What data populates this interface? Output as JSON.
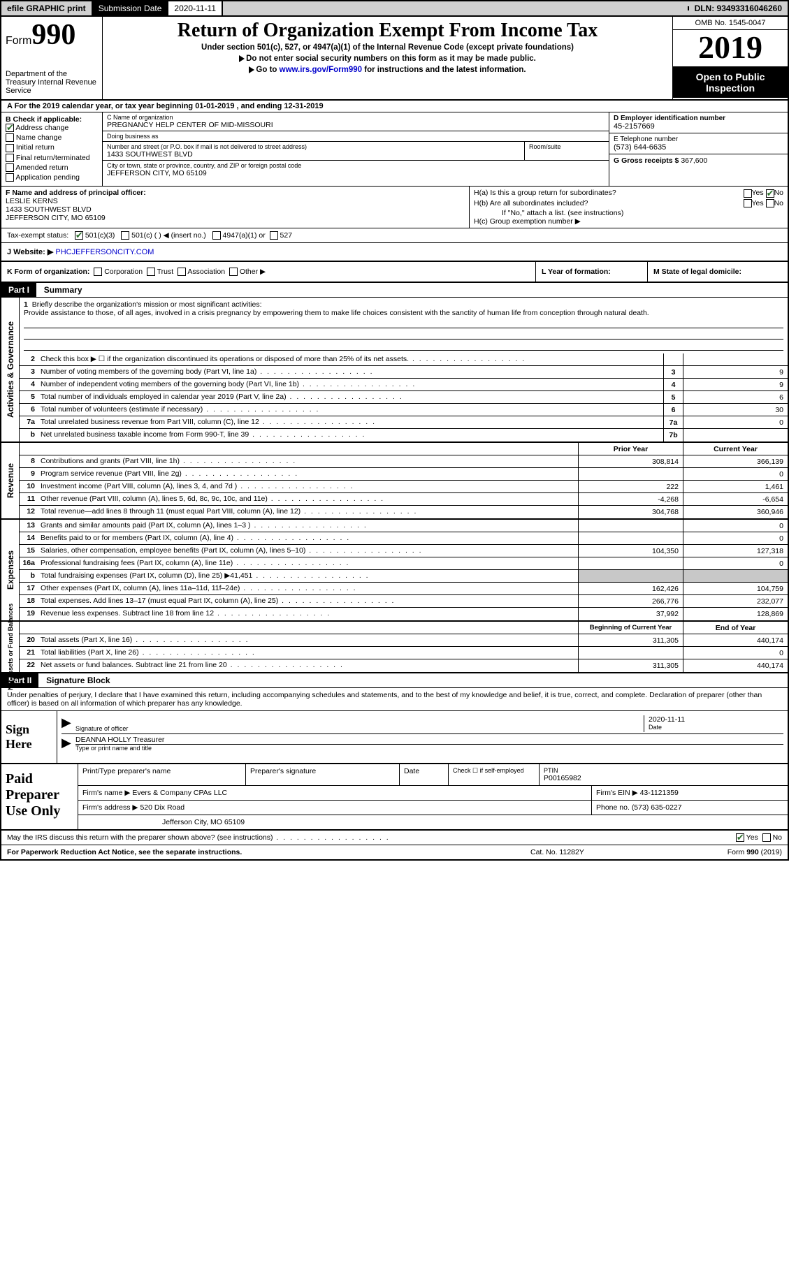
{
  "topbar": {
    "efile": "efile GRAPHIC print",
    "subdate_label": "Submission Date",
    "subdate_value": "2020-11-11",
    "dln": "DLN: 93493316046260"
  },
  "header": {
    "form_label": "Form",
    "form_number": "990",
    "dept": "Department of the Treasury\nInternal Revenue Service",
    "title": "Return of Organization Exempt From Income Tax",
    "sub": "Under section 501(c), 527, or 4947(a)(1) of the Internal Revenue Code (except private foundations)",
    "note1": "Do not enter social security numbers on this form as it may be made public.",
    "note2_pre": "Go to ",
    "note2_link": "www.irs.gov/Form990",
    "note2_post": " for instructions and the latest information.",
    "omb": "OMB No. 1545-0047",
    "year": "2019",
    "inspect": "Open to Public Inspection"
  },
  "rowA": "A For the 2019 calendar year, or tax year beginning 01-01-2019   , and ending 12-31-2019",
  "colB": {
    "label": "B Check if applicable:",
    "opts": [
      "Address change",
      "Name change",
      "Initial return",
      "Final return/terminated",
      "Amended return",
      "Application pending"
    ],
    "checked_idx": 0
  },
  "colC": {
    "name_lbl": "C Name of organization",
    "name": "PREGNANCY HELP CENTER OF MID-MISSOURI",
    "dba_lbl": "Doing business as",
    "dba": "",
    "addr_lbl": "Number and street (or P.O. box if mail is not delivered to street address)",
    "addr": "1433 SOUTHWEST BLVD",
    "room_lbl": "Room/suite",
    "city_lbl": "City or town, state or province, country, and ZIP or foreign postal code",
    "city": "JEFFERSON CITY, MO  65109"
  },
  "colD": {
    "d_lbl": "D Employer identification number",
    "ein": "45-2157669",
    "e_lbl": "E Telephone number",
    "phone": "(573) 644-6635",
    "g_lbl": "G Gross receipts $",
    "g_val": "367,600"
  },
  "colF": {
    "lbl": "F Name and address of principal officer:",
    "name": "LESLIE KERNS",
    "addr1": "1433 SOUTHWEST BLVD",
    "addr2": "JEFFERSON CITY, MO  65109"
  },
  "colH": {
    "ha": "H(a)  Is this a group return for subordinates?",
    "hb": "H(b)  Are all subordinates included?",
    "hb_note": "If \"No,\" attach a list. (see instructions)",
    "hc": "H(c)  Group exemption number ▶",
    "yes": "Yes",
    "no": "No"
  },
  "tax": {
    "label": "Tax-exempt status:",
    "o1": "501(c)(3)",
    "o2": "501(c) (   ) ◀ (insert no.)",
    "o3": "4947(a)(1) or",
    "o4": "527"
  },
  "rowJ": {
    "label": "J   Website: ▶",
    "val": "PHCJEFFERSONCITY.COM"
  },
  "rowK": "K Form of organization:",
  "rowK_opts": [
    "Corporation",
    "Trust",
    "Association",
    "Other ▶"
  ],
  "rowL": "L Year of formation:",
  "rowM": "M State of legal domicile:",
  "part1": {
    "hdr": "Part I",
    "title": "Summary"
  },
  "mission": {
    "num": "1",
    "lbl": "Briefly describe the organization's mission or most significant activities:",
    "text": "Provide assistance to those, of all ages, involved in a crisis pregnancy by empowering them to make life choices consistent with the sanctity of human life from conception through natural death."
  },
  "gov_lines": [
    {
      "n": "2",
      "d": "Check this box ▶ ☐  if the organization discontinued its operations or disposed of more than 25% of its net assets.",
      "box": "",
      "v": ""
    },
    {
      "n": "3",
      "d": "Number of voting members of the governing body (Part VI, line 1a)",
      "box": "3",
      "v": "9"
    },
    {
      "n": "4",
      "d": "Number of independent voting members of the governing body (Part VI, line 1b)",
      "box": "4",
      "v": "9"
    },
    {
      "n": "5",
      "d": "Total number of individuals employed in calendar year 2019 (Part V, line 2a)",
      "box": "5",
      "v": "6"
    },
    {
      "n": "6",
      "d": "Total number of volunteers (estimate if necessary)",
      "box": "6",
      "v": "30"
    },
    {
      "n": "7a",
      "d": "Total unrelated business revenue from Part VIII, column (C), line 12",
      "box": "7a",
      "v": "0"
    },
    {
      "n": "b",
      "d": "Net unrelated business taxable income from Form 990-T, line 39",
      "box": "7b",
      "v": ""
    }
  ],
  "col_hdr": {
    "py": "Prior Year",
    "cy": "Current Year"
  },
  "rev_lines": [
    {
      "n": "8",
      "d": "Contributions and grants (Part VIII, line 1h)",
      "py": "308,814",
      "cy": "366,139"
    },
    {
      "n": "9",
      "d": "Program service revenue (Part VIII, line 2g)",
      "py": "",
      "cy": "0"
    },
    {
      "n": "10",
      "d": "Investment income (Part VIII, column (A), lines 3, 4, and 7d )",
      "py": "222",
      "cy": "1,461"
    },
    {
      "n": "11",
      "d": "Other revenue (Part VIII, column (A), lines 5, 6d, 8c, 9c, 10c, and 11e)",
      "py": "-4,268",
      "cy": "-6,654"
    },
    {
      "n": "12",
      "d": "Total revenue—add lines 8 through 11 (must equal Part VIII, column (A), line 12)",
      "py": "304,768",
      "cy": "360,946"
    }
  ],
  "exp_lines": [
    {
      "n": "13",
      "d": "Grants and similar amounts paid (Part IX, column (A), lines 1–3 )",
      "py": "",
      "cy": "0"
    },
    {
      "n": "14",
      "d": "Benefits paid to or for members (Part IX, column (A), line 4)",
      "py": "",
      "cy": "0"
    },
    {
      "n": "15",
      "d": "Salaries, other compensation, employee benefits (Part IX, column (A), lines 5–10)",
      "py": "104,350",
      "cy": "127,318"
    },
    {
      "n": "16a",
      "d": "Professional fundraising fees (Part IX, column (A), line 11e)",
      "py": "",
      "cy": "0"
    },
    {
      "n": "b",
      "d": "Total fundraising expenses (Part IX, column (D), line 25) ▶41,451",
      "py": "sh",
      "cy": "sh"
    },
    {
      "n": "17",
      "d": "Other expenses (Part IX, column (A), lines 11a–11d, 11f–24e)",
      "py": "162,426",
      "cy": "104,759"
    },
    {
      "n": "18",
      "d": "Total expenses. Add lines 13–17 (must equal Part IX, column (A), line 25)",
      "py": "266,776",
      "cy": "232,077"
    },
    {
      "n": "19",
      "d": "Revenue less expenses. Subtract line 18 from line 12",
      "py": "37,992",
      "cy": "128,869"
    }
  ],
  "na_hdr": {
    "py": "Beginning of Current Year",
    "cy": "End of Year"
  },
  "na_lines": [
    {
      "n": "20",
      "d": "Total assets (Part X, line 16)",
      "py": "311,305",
      "cy": "440,174"
    },
    {
      "n": "21",
      "d": "Total liabilities (Part X, line 26)",
      "py": "",
      "cy": "0"
    },
    {
      "n": "22",
      "d": "Net assets or fund balances. Subtract line 21 from line 20",
      "py": "311,305",
      "cy": "440,174"
    }
  ],
  "vlabels": {
    "gov": "Activities & Governance",
    "rev": "Revenue",
    "exp": "Expenses",
    "na": "Net Assets or Fund Balances"
  },
  "part2": {
    "hdr": "Part II",
    "title": "Signature Block"
  },
  "decl": "Under penalties of perjury, I declare that I have examined this return, including accompanying schedules and statements, and to the best of my knowledge and belief, it is true, correct, and complete. Declaration of preparer (other than officer) is based on all information of which preparer has any knowledge.",
  "sign": {
    "here": "Sign Here",
    "sig_lbl": "Signature of officer",
    "date_lbl": "Date",
    "date": "2020-11-11",
    "name": "DEANNA HOLLY  Treasurer",
    "name_lbl": "Type or print name and title"
  },
  "prep": {
    "left": "Paid Preparer Use Only",
    "r1": {
      "a": "Print/Type preparer's name",
      "b": "Preparer's signature",
      "c": "Date",
      "d_lbl": "Check ☐ if self-employed",
      "e_lbl": "PTIN",
      "e": "P00165982"
    },
    "r2": {
      "a_lbl": "Firm's name   ▶",
      "a": "Evers & Company CPAs LLC",
      "b_lbl": "Firm's EIN ▶",
      "b": "43-1121359"
    },
    "r3": {
      "a_lbl": "Firm's address ▶",
      "a": "520 Dix Road",
      "b_lbl": "Phone no.",
      "b": "(573) 635-0227"
    },
    "r4": "Jefferson City, MO  65109"
  },
  "discuss": {
    "q": "May the IRS discuss this return with the preparer shown above? (see instructions)",
    "yes": "Yes",
    "no": "No"
  },
  "footer": {
    "l": "For Paperwork Reduction Act Notice, see the separate instructions.",
    "c": "Cat. No. 11282Y",
    "r": "Form 990 (2019)"
  }
}
